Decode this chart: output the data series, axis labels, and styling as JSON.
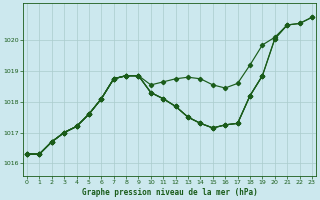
{
  "title": "Graphe pression niveau de la mer (hPa)",
  "bg_color": "#cce8ee",
  "grid_color": "#aacccc",
  "line_color": "#1a5c1a",
  "ylim": [
    1015.6,
    1021.2
  ],
  "xlim": [
    -0.3,
    23.3
  ],
  "yticks": [
    1016,
    1017,
    1018,
    1019,
    1020
  ],
  "xticks": [
    0,
    1,
    2,
    3,
    4,
    5,
    6,
    7,
    8,
    9,
    10,
    11,
    12,
    13,
    14,
    15,
    16,
    17,
    18,
    19,
    20,
    21,
    22,
    23
  ],
  "line1_x": [
    0,
    1,
    2,
    3,
    4,
    5,
    6,
    7,
    8,
    9
  ],
  "line1_y": [
    1016.3,
    1016.3,
    1016.7,
    1017.0,
    1017.2,
    1017.6,
    1018.1,
    1018.75,
    1018.85,
    1018.85
  ],
  "line2_x": [
    0,
    1,
    2,
    3,
    4,
    5,
    6,
    7,
    8,
    9,
    10,
    11,
    12,
    13,
    14,
    15,
    16,
    17,
    18,
    19
  ],
  "line2_y": [
    1016.3,
    1016.3,
    1016.7,
    1017.0,
    1017.2,
    1017.6,
    1018.1,
    1018.75,
    1018.85,
    1018.85,
    1018.3,
    1018.1,
    1017.85,
    1017.5,
    1017.3,
    1017.15,
    1017.25,
    1017.3,
    1018.2,
    1018.85
  ],
  "line3_x": [
    0,
    1,
    2,
    3,
    4,
    5,
    6,
    7,
    8,
    9,
    10,
    11,
    12,
    13,
    14,
    15,
    16,
    17,
    18,
    19,
    20,
    21
  ],
  "line3_y": [
    1016.3,
    1016.3,
    1016.7,
    1017.0,
    1017.2,
    1017.6,
    1018.1,
    1018.75,
    1018.85,
    1018.85,
    1018.3,
    1018.1,
    1017.85,
    1017.5,
    1017.3,
    1017.15,
    1017.25,
    1017.3,
    1018.2,
    1018.85,
    1020.05,
    1020.5
  ],
  "line4_x": [
    0,
    1,
    2,
    3,
    4,
    5,
    6,
    7,
    8,
    9,
    10,
    11,
    12,
    13,
    14,
    15,
    16,
    17,
    18,
    19,
    20,
    21,
    22,
    23
  ],
  "line4_y": [
    1016.3,
    1016.3,
    1016.7,
    1017.0,
    1017.2,
    1017.6,
    1018.1,
    1018.75,
    1018.85,
    1018.85,
    1018.3,
    1018.1,
    1017.85,
    1017.5,
    1017.3,
    1017.15,
    1017.25,
    1017.3,
    1018.2,
    1018.85,
    1020.05,
    1020.5,
    1020.55,
    1020.75
  ],
  "line5_x": [
    0,
    1,
    2,
    3,
    4,
    5,
    6,
    7,
    8,
    9,
    10,
    11,
    12,
    13,
    14,
    15,
    16,
    17,
    18,
    19,
    20,
    21,
    22,
    23
  ],
  "line5_y": [
    1016.3,
    1016.3,
    1016.7,
    1017.0,
    1017.2,
    1017.6,
    1018.1,
    1018.75,
    1018.85,
    1018.85,
    1018.55,
    1018.65,
    1018.75,
    1018.8,
    1018.75,
    1018.55,
    1018.45,
    1018.6,
    1019.2,
    1019.85,
    1020.1,
    1020.5,
    1020.55,
    1020.75
  ]
}
